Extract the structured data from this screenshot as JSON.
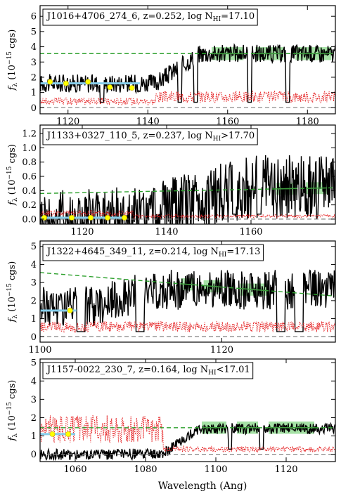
{
  "figure": {
    "xlabel": "Wavelength (Ang)",
    "colors": {
      "flux": "#000000",
      "error": "#e41a1c",
      "continuum": "#2ca02c",
      "fit_band": "#7fd47f",
      "lyman_series": "#87ceeb",
      "lyman_points": "#ffff00",
      "zero_line": "#808080"
    }
  },
  "chart_data": [
    {
      "type": "line",
      "label": "J1016+4706_274_6, z=0.252, log N",
      "label_sub": "HI",
      "label_rel": "=17.10",
      "ylabel": "f",
      "ylabel_sub": "λ",
      "ylabel_unit": "(10",
      "ylabel_exp": "−15",
      "ylabel_unit2": " cgs)",
      "xlim": [
        1113,
        1187
      ],
      "ylim": [
        -0.4,
        6.7
      ],
      "xticks": [
        1120,
        1140,
        1160,
        1180
      ],
      "yticks": [
        0,
        1,
        2,
        3,
        4,
        5,
        6
      ],
      "ytick_labels": [
        "0",
        "1",
        "2",
        "3",
        "4",
        "5",
        "6"
      ],
      "continuum": [
        [
          1113,
          3.55
        ],
        [
          1187,
          3.55
        ]
      ],
      "fit_segments": [
        [
          1156,
          1164
        ],
        [
          1167,
          1174
        ],
        [
          1177,
          1186
        ]
      ],
      "lyman_range": [
        1113,
        1138
      ],
      "lyman_level": 1.6,
      "lyman_points": [
        [
          1115.5,
          1.7
        ],
        [
          1119.5,
          1.6
        ],
        [
          1125,
          1.7
        ],
        [
          1130.5,
          1.35
        ],
        [
          1136,
          1.3
        ]
      ],
      "flux_profile": {
        "pre_level": 1.6,
        "step_x": 1142,
        "step_x2": 1153,
        "post_level": 3.55,
        "noise": 0.6,
        "error_pre": 0.6,
        "error_post": 1.0
      },
      "absorption_lines": [
        1128.5,
        1148,
        1152,
        1165.5,
        1175
      ]
    },
    {
      "type": "line",
      "label": "J1133+0327_110_5, z=0.237, log N",
      "label_sub": "HI",
      "label_rel": ">17.70",
      "ylabel": "f",
      "ylabel_sub": "λ",
      "ylabel_unit": "(10",
      "ylabel_exp": "−15",
      "ylabel_unit2": " cgs)",
      "xlim": [
        1110,
        1180
      ],
      "ylim": [
        -0.07,
        1.32
      ],
      "xticks": [
        1120,
        1140,
        1160
      ],
      "yticks": [
        0.0,
        0.2,
        0.4,
        0.6,
        0.8,
        1.0,
        1.2
      ],
      "ytick_labels": [
        "0.0",
        "0.2",
        "0.4",
        "0.6",
        "0.8",
        "1.0",
        "1.2"
      ],
      "continuum": [
        [
          1110,
          0.36
        ],
        [
          1180,
          0.44
        ]
      ],
      "fit_segments": [
        [
          1166,
          1171
        ],
        [
          1173,
          1178
        ]
      ],
      "lyman_range": [
        1110,
        1130
      ],
      "lyman_level": 0.02,
      "lyman_points": [
        [
          1111,
          0.02
        ],
        [
          1117.5,
          0.02
        ],
        [
          1122,
          0.02
        ],
        [
          1126,
          0.02
        ],
        [
          1130,
          0.02
        ]
      ],
      "flux_profile": {
        "pre_level": 0.0,
        "step_x": 1132,
        "step_x2": 1160,
        "post_level": 0.45,
        "noise": 0.45,
        "error_pre": 0.6,
        "error_post": 0.3
      },
      "absorption_lines": [
        1138,
        1156,
        1162
      ]
    },
    {
      "type": "line",
      "label": "J1322+4645_349_11, z=0.214, log N",
      "label_sub": "HI",
      "label_rel": "=17.13",
      "ylabel": "f",
      "ylabel_sub": "λ",
      "ylabel_unit": "(10",
      "ylabel_exp": "−15",
      "ylabel_unit2": " cgs)",
      "xlim": [
        1100,
        1132.5
      ],
      "ylim": [
        -0.3,
        5.3
      ],
      "xticks": [
        1100,
        1120
      ],
      "yticks": [
        0,
        1,
        2,
        3,
        4,
        5
      ],
      "ytick_labels": [
        "0",
        "1",
        "2",
        "3",
        "4",
        "5"
      ],
      "continuum": [
        [
          1100,
          3.55
        ],
        [
          1132.5,
          2.25
        ]
      ],
      "fit_segments": [
        [
          1115.5,
          1117
        ],
        [
          1118,
          1120
        ],
        [
          1122,
          1125
        ]
      ],
      "lyman_range": [
        1100,
        1104
      ],
      "lyman_level": 1.45,
      "lyman_points": [
        [
          1103.3,
          1.45
        ]
      ],
      "flux_profile": {
        "pre_level": 1.7,
        "step_x": 1106,
        "step_x2": 1112,
        "post_level": 2.6,
        "noise": 1.1,
        "error_pre": 1.0,
        "error_post": 1.0
      },
      "absorption_lines": [
        1104.5,
        1111,
        1126.5,
        1128.5
      ]
    },
    {
      "type": "line",
      "label": "J1157-0022_230_7, z=0.164, log N",
      "label_sub": "HI",
      "label_rel": "<17.01",
      "ylabel": "f",
      "ylabel_sub": "λ",
      "ylabel_unit": "(10",
      "ylabel_exp": "−15",
      "ylabel_unit2": " cgs)",
      "xlim": [
        1050,
        1134
      ],
      "ylim": [
        -0.4,
        5.2
      ],
      "xticks": [
        1060,
        1080,
        1100,
        1120
      ],
      "yticks": [
        0,
        1,
        2,
        3,
        4,
        5
      ],
      "ytick_labels": [
        "0",
        "1",
        "2",
        "3",
        "4",
        "5"
      ],
      "continuum": [
        [
          1050,
          1.45
        ],
        [
          1134,
          1.45
        ]
      ],
      "fit_segments": [
        [
          1096,
          1103
        ],
        [
          1106,
          1112
        ],
        [
          1115,
          1128
        ]
      ],
      "lyman_range": [
        1050,
        1060
      ],
      "lyman_level": 1.1,
      "lyman_points": [
        [
          1053.5,
          1.1
        ],
        [
          1058,
          1.1
        ]
      ],
      "flux_profile": {
        "pre_level": 0.0,
        "step_x": 1085,
        "step_x2": 1095,
        "post_level": 1.4,
        "noise": 0.3,
        "error_pre": 2.5,
        "error_post": 0.5
      },
      "absorption_lines": [
        1104,
        1113
      ]
    }
  ]
}
